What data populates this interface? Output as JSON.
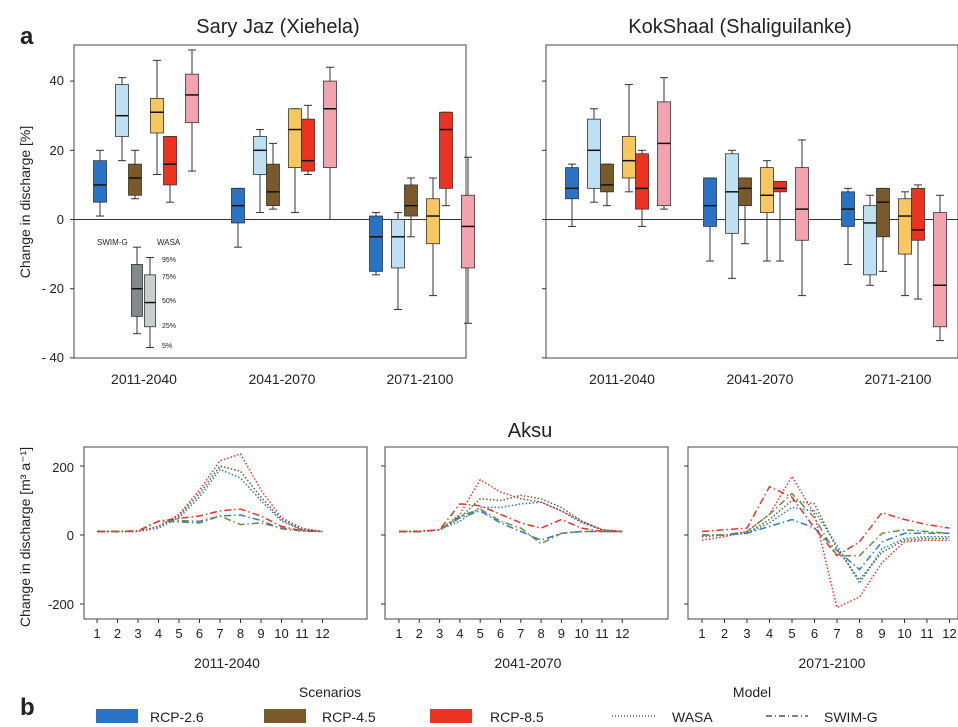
{
  "panel_labels": {
    "a": "a",
    "b": "b"
  },
  "colors": {
    "rcp26": {
      "swim": "#2a72c4",
      "wasa": "#bfe0f2"
    },
    "rcp45": {
      "swim": "#7a5a2a",
      "wasa": "#f8c760"
    },
    "rcp85": {
      "swim": "#ec3322",
      "wasa": "#f3a3ad"
    },
    "legend_swim": "#7f8b8b",
    "legend_wasa": "#c8cfcf"
  },
  "legend_box": {
    "swim_label": "SWIM-G",
    "wasa_label": "WASA",
    "pct_95": "95%",
    "pct_75": "75%",
    "pct_50": "50%",
    "pct_25": "25%",
    "pct_5": "5%"
  },
  "legend_bottom": {
    "scenarios_title": "Scenarios",
    "model_title": "Model",
    "rcp26": "RCP-2.6",
    "rcp45": "RCP-4.5",
    "rcp85": "RCP-8.5",
    "wasa": "WASA",
    "swim": "SWIM-G"
  },
  "chart_data": [
    {
      "type": "box",
      "title": "Sary Jaz (Xiehela)",
      "ylabel": "Change in discharge [%]",
      "ylim": [
        -40,
        50
      ],
      "yticks": [
        "40",
        "20",
        "0",
        "- 20",
        "- 40"
      ],
      "categories": [
        "2011-2040",
        "2041-2070",
        "2071-2100"
      ],
      "boxes": [
        {
          "period": "2011-2040",
          "scenario": "RCP-2.6",
          "model": "SWIM-G",
          "p5": 1,
          "p25": 5,
          "p50": 10,
          "p75": 17,
          "p95": 20
        },
        {
          "period": "2011-2040",
          "scenario": "RCP-2.6",
          "model": "WASA",
          "p5": 17,
          "p25": 24,
          "p50": 30,
          "p75": 39,
          "p95": 41
        },
        {
          "period": "2011-2040",
          "scenario": "RCP-4.5",
          "model": "SWIM-G",
          "p5": 6,
          "p25": 7,
          "p50": 12,
          "p75": 16,
          "p95": 20
        },
        {
          "period": "2011-2040",
          "scenario": "RCP-4.5",
          "model": "WASA",
          "p5": 13,
          "p25": 25,
          "p50": 31,
          "p75": 35,
          "p95": 46
        },
        {
          "period": "2011-2040",
          "scenario": "RCP-8.5",
          "model": "SWIM-G",
          "p5": 5,
          "p25": 10,
          "p50": 16,
          "p75": 24,
          "p95": 24
        },
        {
          "period": "2011-2040",
          "scenario": "RCP-8.5",
          "model": "WASA",
          "p5": 14,
          "p25": 28,
          "p50": 36,
          "p75": 42,
          "p95": 49
        },
        {
          "period": "2041-2070",
          "scenario": "RCP-2.6",
          "model": "SWIM-G",
          "p5": -8,
          "p25": -1,
          "p50": 4,
          "p75": 9,
          "p95": 9
        },
        {
          "period": "2041-2070",
          "scenario": "RCP-2.6",
          "model": "WASA",
          "p5": 2,
          "p25": 13,
          "p50": 20,
          "p75": 24,
          "p95": 26
        },
        {
          "period": "2041-2070",
          "scenario": "RCP-4.5",
          "model": "SWIM-G",
          "p5": 3,
          "p25": 4,
          "p50": 8,
          "p75": 16,
          "p95": 22
        },
        {
          "period": "2041-2070",
          "scenario": "RCP-4.5",
          "model": "WASA",
          "p5": 2,
          "p25": 15,
          "p50": 26,
          "p75": 32,
          "p95": 32
        },
        {
          "period": "2041-2070",
          "scenario": "RCP-8.5",
          "model": "SWIM-G",
          "p5": 13,
          "p25": 14,
          "p50": 17,
          "p75": 29,
          "p95": 33
        },
        {
          "period": "2041-2070",
          "scenario": "RCP-8.5",
          "model": "WASA",
          "p5": 0,
          "p25": 15,
          "p50": 32,
          "p75": 40,
          "p95": 44
        },
        {
          "period": "2071-2100",
          "scenario": "RCP-2.6",
          "model": "SWIM-G",
          "p5": -16,
          "p25": -15,
          "p50": -5,
          "p75": 1,
          "p95": 2
        },
        {
          "period": "2071-2100",
          "scenario": "RCP-2.6",
          "model": "WASA",
          "p5": -26,
          "p25": -14,
          "p50": -5,
          "p75": 0,
          "p95": 2
        },
        {
          "period": "2071-2100",
          "scenario": "RCP-4.5",
          "model": "SWIM-G",
          "p5": -5,
          "p25": 1,
          "p50": 4,
          "p75": 10,
          "p95": 12
        },
        {
          "period": "2071-2100",
          "scenario": "RCP-4.5",
          "model": "WASA",
          "p5": -22,
          "p25": -7,
          "p50": 1,
          "p75": 6,
          "p95": 12
        },
        {
          "period": "2071-2100",
          "scenario": "RCP-8.5",
          "model": "SWIM-G",
          "p5": 4,
          "p25": 9,
          "p50": 26,
          "p75": 31,
          "p95": 31
        },
        {
          "period": "2071-2100",
          "scenario": "RCP-8.5",
          "model": "WASA",
          "p5": -30,
          "p25": -14,
          "p50": -2,
          "p75": 7,
          "p95": 18
        }
      ],
      "legend_example": {
        "SWIM-G": {
          "p5": -33,
          "p25": -28,
          "p50": -20,
          "p75": -13,
          "p95": -8
        },
        "WASA": {
          "p5": -37,
          "p25": -31,
          "p50": -24,
          "p75": -16,
          "p95": -11
        }
      }
    },
    {
      "type": "box",
      "title": "KokShaal (Shaliguilanke)",
      "ylim": [
        -40,
        50
      ],
      "categories": [
        "2011-2040",
        "2041-2070",
        "2071-2100"
      ],
      "boxes": [
        {
          "period": "2011-2040",
          "scenario": "RCP-2.6",
          "model": "SWIM-G",
          "p5": -2,
          "p25": 6,
          "p50": 9,
          "p75": 15,
          "p95": 16
        },
        {
          "period": "2011-2040",
          "scenario": "RCP-2.6",
          "model": "WASA",
          "p5": 5,
          "p25": 9,
          "p50": 20,
          "p75": 29,
          "p95": 32
        },
        {
          "period": "2011-2040",
          "scenario": "RCP-4.5",
          "model": "SWIM-G",
          "p5": 4,
          "p25": 8,
          "p50": 10,
          "p75": 16,
          "p95": 16
        },
        {
          "period": "2011-2040",
          "scenario": "RCP-4.5",
          "model": "WASA",
          "p5": 8,
          "p25": 12,
          "p50": 17,
          "p75": 24,
          "p95": 39
        },
        {
          "period": "2011-2040",
          "scenario": "RCP-8.5",
          "model": "SWIM-G",
          "p5": -2,
          "p25": 3,
          "p50": 9,
          "p75": 19,
          "p95": 20
        },
        {
          "period": "2011-2040",
          "scenario": "RCP-8.5",
          "model": "WASA",
          "p5": 3,
          "p25": 4,
          "p50": 22,
          "p75": 34,
          "p95": 41
        },
        {
          "period": "2041-2070",
          "scenario": "RCP-2.6",
          "model": "SWIM-G",
          "p5": -12,
          "p25": -2,
          "p50": 4,
          "p75": 12,
          "p95": 12
        },
        {
          "period": "2041-2070",
          "scenario": "RCP-2.6",
          "model": "WASA",
          "p5": -17,
          "p25": -4,
          "p50": 8,
          "p75": 19,
          "p95": 20
        },
        {
          "period": "2041-2070",
          "scenario": "RCP-4.5",
          "model": "SWIM-G",
          "p5": -7,
          "p25": 4,
          "p50": 9,
          "p75": 12,
          "p95": 12
        },
        {
          "period": "2041-2070",
          "scenario": "RCP-4.5",
          "model": "WASA",
          "p5": -12,
          "p25": 2,
          "p50": 7,
          "p75": 15,
          "p95": 17
        },
        {
          "period": "2041-2070",
          "scenario": "RCP-8.5",
          "model": "SWIM-G",
          "p5": -12,
          "p25": 8,
          "p50": 9,
          "p75": 11,
          "p95": 11
        },
        {
          "period": "2041-2070",
          "scenario": "RCP-8.5",
          "model": "WASA",
          "p5": -22,
          "p25": -6,
          "p50": 3,
          "p75": 15,
          "p95": 23
        },
        {
          "period": "2071-2100",
          "scenario": "RCP-2.6",
          "model": "SWIM-G",
          "p5": -13,
          "p25": -2,
          "p50": 3,
          "p75": 8,
          "p95": 9
        },
        {
          "period": "2071-2100",
          "scenario": "RCP-2.6",
          "model": "WASA",
          "p5": -19,
          "p25": -16,
          "p50": -1,
          "p75": 4,
          "p95": 7
        },
        {
          "period": "2071-2100",
          "scenario": "RCP-4.5",
          "model": "SWIM-G",
          "p5": -15,
          "p25": -5,
          "p50": 5,
          "p75": 9,
          "p95": 9
        },
        {
          "period": "2071-2100",
          "scenario": "RCP-4.5",
          "model": "WASA",
          "p5": -22,
          "p25": -10,
          "p50": 1,
          "p75": 6,
          "p95": 8
        },
        {
          "period": "2071-2100",
          "scenario": "RCP-8.5",
          "model": "SWIM-G",
          "p5": -23,
          "p25": -6,
          "p50": -3,
          "p75": 9,
          "p95": 10
        },
        {
          "period": "2071-2100",
          "scenario": "RCP-8.5",
          "model": "WASA",
          "p5": -35,
          "p25": -31,
          "p50": -19,
          "p75": 2,
          "p95": 7
        }
      ]
    },
    {
      "type": "line",
      "title": "Aksu",
      "ylabel": "Change in discharge [m³ a⁻¹]",
      "ylim": [
        -220,
        240
      ],
      "yticks": [
        "200",
        "0",
        "-200"
      ],
      "x": [
        1,
        2,
        3,
        4,
        5,
        6,
        7,
        8,
        9,
        10,
        11,
        12
      ],
      "panels": [
        {
          "period": "2011-2040",
          "series": [
            {
              "scenario": "RCP-2.6",
              "model": "WASA",
              "values": [
                10,
                10,
                10,
                20,
                50,
                110,
                190,
                165,
                100,
                40,
                15,
                10
              ]
            },
            {
              "scenario": "RCP-4.5",
              "model": "WASA",
              "values": [
                10,
                10,
                10,
                25,
                55,
                120,
                200,
                185,
                110,
                45,
                15,
                10
              ]
            },
            {
              "scenario": "RCP-8.5",
              "model": "WASA",
              "values": [
                10,
                10,
                10,
                25,
                60,
                130,
                215,
                235,
                130,
                50,
                20,
                10
              ]
            },
            {
              "scenario": "RCP-2.6",
              "model": "SWIM-G",
              "values": [
                10,
                10,
                12,
                40,
                38,
                35,
                55,
                58,
                42,
                18,
                12,
                10
              ]
            },
            {
              "scenario": "RCP-4.5",
              "model": "SWIM-G",
              "values": [
                10,
                10,
                12,
                40,
                42,
                40,
                55,
                30,
                35,
                20,
                12,
                10
              ]
            },
            {
              "scenario": "RCP-8.5",
              "model": "SWIM-G",
              "values": [
                10,
                10,
                12,
                40,
                48,
                55,
                70,
                75,
                55,
                25,
                12,
                10
              ]
            }
          ]
        },
        {
          "period": "2041-2070",
          "series": [
            {
              "scenario": "RCP-2.6",
              "model": "WASA",
              "values": [
                10,
                10,
                15,
                40,
                80,
                80,
                90,
                95,
                70,
                35,
                15,
                10
              ]
            },
            {
              "scenario": "RCP-4.5",
              "model": "WASA",
              "values": [
                10,
                10,
                15,
                50,
                105,
                100,
                115,
                105,
                80,
                40,
                15,
                10
              ]
            },
            {
              "scenario": "RCP-8.5",
              "model": "WASA",
              "values": [
                10,
                10,
                15,
                60,
                160,
                125,
                105,
                95,
                70,
                40,
                15,
                10
              ]
            },
            {
              "scenario": "RCP-2.6",
              "model": "SWIM-G",
              "values": [
                10,
                10,
                15,
                50,
                70,
                35,
                10,
                -15,
                5,
                10,
                10,
                10
              ]
            },
            {
              "scenario": "RCP-4.5",
              "model": "SWIM-G",
              "values": [
                10,
                10,
                15,
                55,
                75,
                40,
                20,
                -25,
                5,
                10,
                10,
                10
              ]
            },
            {
              "scenario": "RCP-8.5",
              "model": "SWIM-G",
              "values": [
                10,
                10,
                15,
                90,
                85,
                60,
                35,
                20,
                45,
                20,
                10,
                10
              ]
            }
          ]
        },
        {
          "period": "2071-2100",
          "series": [
            {
              "scenario": "RCP-2.6",
              "model": "WASA",
              "values": [
                -5,
                0,
                5,
                35,
                80,
                70,
                -30,
                -140,
                -40,
                -10,
                -5,
                -5
              ]
            },
            {
              "scenario": "RCP-4.5",
              "model": "WASA",
              "values": [
                -5,
                0,
                5,
                45,
                100,
                90,
                -40,
                -130,
                -50,
                -15,
                -10,
                -10
              ]
            },
            {
              "scenario": "RCP-8.5",
              "model": "WASA",
              "values": [
                -15,
                -5,
                10,
                60,
                170,
                60,
                -210,
                -180,
                -80,
                -20,
                -15,
                -15
              ]
            },
            {
              "scenario": "RCP-2.6",
              "model": "SWIM-G",
              "values": [
                0,
                0,
                5,
                25,
                45,
                20,
                -45,
                -100,
                -20,
                5,
                5,
                5
              ]
            },
            {
              "scenario": "RCP-4.5",
              "model": "SWIM-G",
              "values": [
                0,
                0,
                10,
                60,
                120,
                50,
                -60,
                -60,
                5,
                15,
                10,
                5
              ]
            },
            {
              "scenario": "RCP-8.5",
              "model": "SWIM-G",
              "values": [
                10,
                15,
                20,
                140,
                110,
                20,
                -60,
                -20,
                65,
                45,
                30,
                20
              ]
            }
          ]
        }
      ]
    }
  ]
}
